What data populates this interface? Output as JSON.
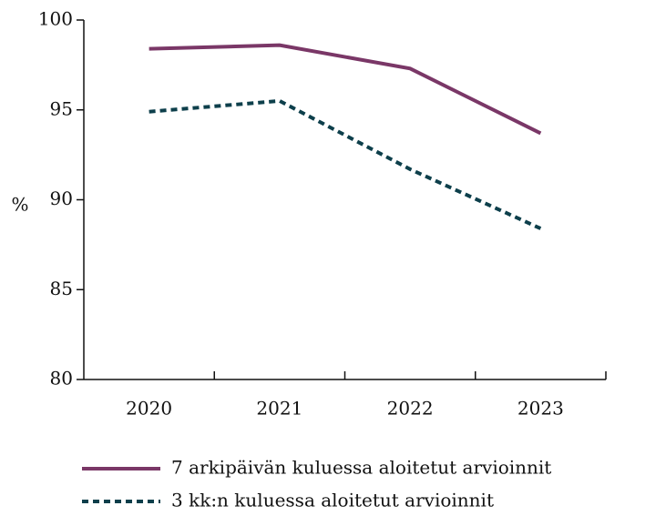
{
  "chart_data": {
    "type": "line",
    "y_label": "%",
    "categories": [
      "2020",
      "2021",
      "2022",
      "2023"
    ],
    "series": [
      {
        "name": "7 arkipäivän kuluessa aloitetut arvioinnit",
        "color": "#7a3767",
        "dash": false,
        "values": [
          98.4,
          98.6,
          97.3,
          93.7
        ]
      },
      {
        "name": "3 kk:n kuluessa aloitetut arvioinnit",
        "color": "#0d3f4b",
        "dash": true,
        "values": [
          94.9,
          95.5,
          91.7,
          88.4
        ]
      }
    ],
    "ylim": [
      80,
      100
    ],
    "yticks": [
      80,
      85,
      90,
      95,
      100
    ]
  }
}
